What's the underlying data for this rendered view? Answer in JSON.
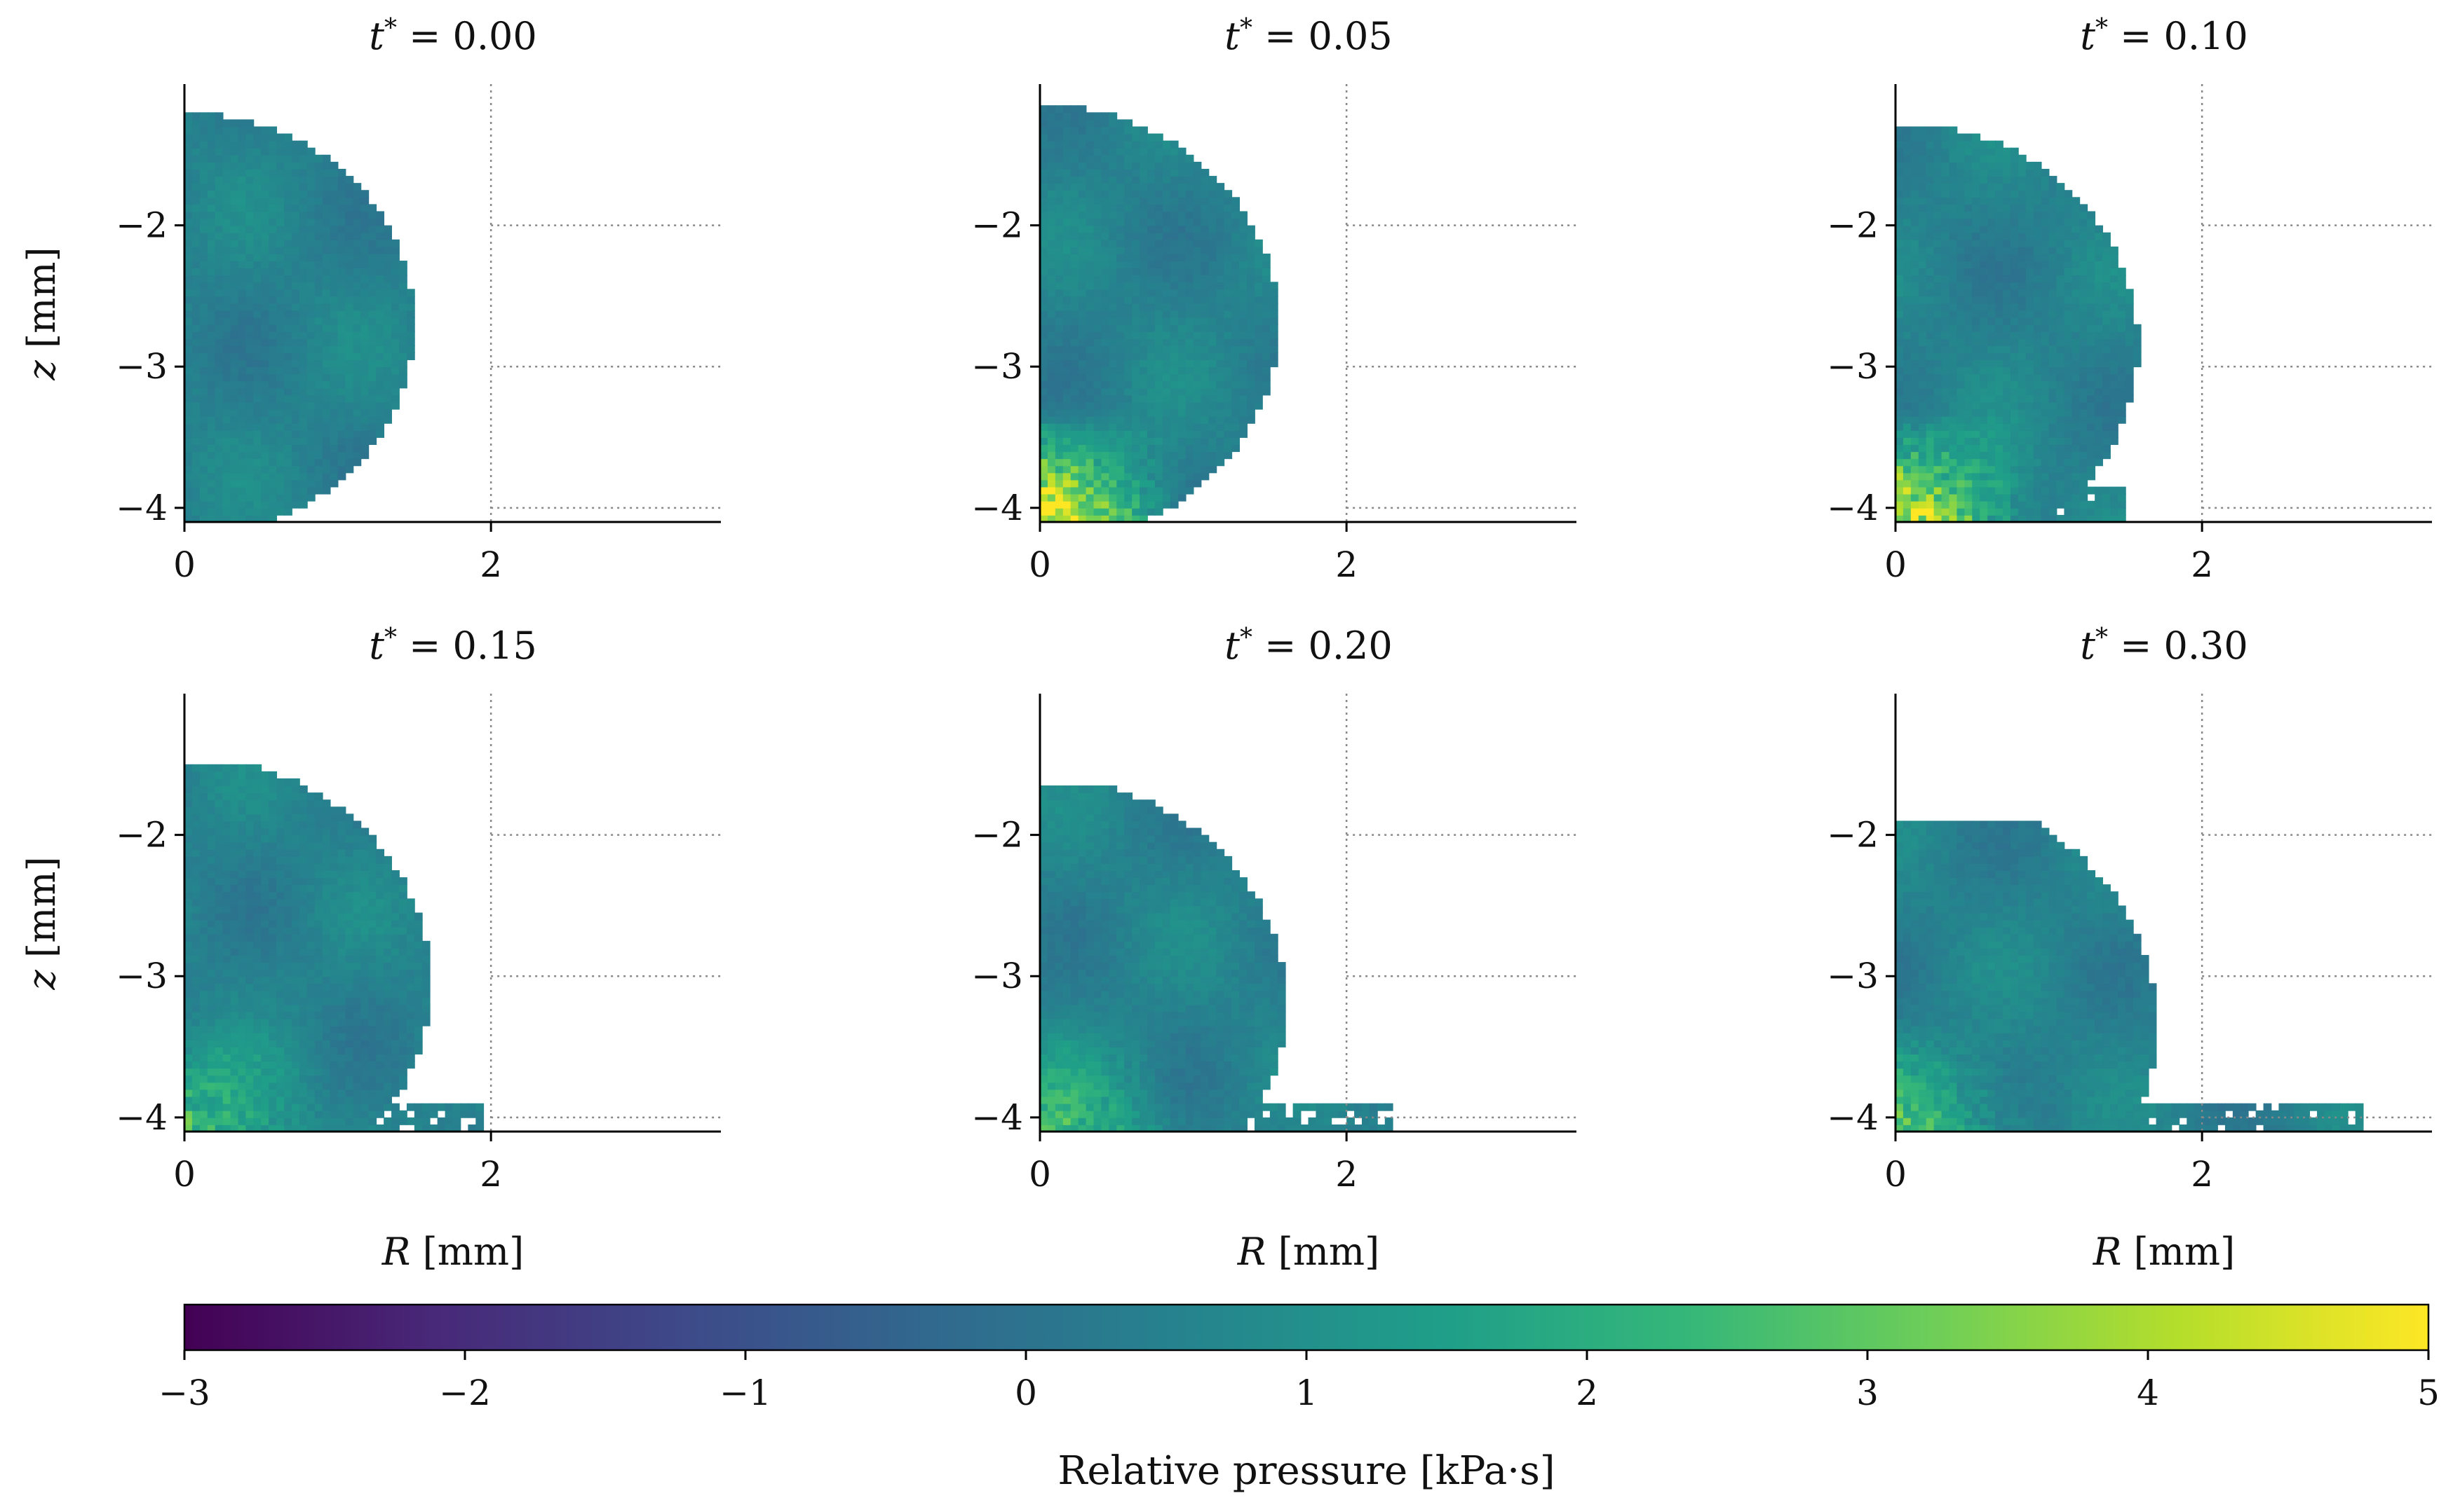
{
  "chart_data": {
    "type": "heatmap",
    "layout": "2x3 grid of panels sharing one horizontal colorbar",
    "colormap": "viridis",
    "panels": [
      {
        "title": "t* = 0.00",
        "t_star": "0.00",
        "title_var": "t",
        "title_value": "= 0.00",
        "droplet_radius_mm": 1.5,
        "center_z_mm": -2.7,
        "clip_top_mm": -1.0,
        "splash": [],
        "xlabel": "",
        "ylabel": "z [mm]",
        "xlim": [
          0,
          3.5
        ],
        "ylim": [
          -4.1,
          -1.0
        ],
        "xticks": [
          0,
          2
        ],
        "yticks": [
          -4,
          -3,
          -2
        ]
      },
      {
        "title": "t* = 0.05",
        "t_star": "0.05",
        "title_var": "t",
        "title_value": "= 0.05",
        "droplet_radius_mm": 1.55,
        "center_z_mm": -2.7,
        "clip_top_mm": -1.1,
        "splash": [],
        "xlabel": "",
        "ylabel": "",
        "xlim": [
          0,
          3.5
        ],
        "ylim": [
          -4.1,
          -1.0
        ],
        "xticks": [
          0,
          2
        ],
        "yticks": [
          -4,
          -3,
          -2
        ]
      },
      {
        "title": "t* = 0.10",
        "t_star": "0.10",
        "title_var": "t",
        "title_value": "= 0.10",
        "droplet_radius_mm": 1.58,
        "center_z_mm": -2.85,
        "clip_top_mm": -1.3,
        "splash": [
          {
            "r0": 1.0,
            "r1": 1.52,
            "z0": -4.1,
            "z1": -3.85
          }
        ],
        "xlabel": "",
        "ylabel": "",
        "xlim": [
          0,
          3.5
        ],
        "ylim": [
          -4.1,
          -1.0
        ],
        "xticks": [
          0,
          2
        ],
        "yticks": [
          -4,
          -3,
          -2
        ]
      },
      {
        "title": "t* = 0.15",
        "t_star": "0.15",
        "title_var": "t",
        "title_value": "= 0.15",
        "droplet_radius_mm": 1.6,
        "center_z_mm": -3.05,
        "clip_top_mm": -1.5,
        "splash": [
          {
            "r0": 1.0,
            "r1": 1.95,
            "z0": -4.1,
            "z1": -3.9
          }
        ],
        "xlabel": "R [mm]",
        "ylabel": "z [mm]",
        "xlim": [
          0,
          3.5
        ],
        "ylim": [
          -4.1,
          -1.0
        ],
        "xticks": [
          0,
          2
        ],
        "yticks": [
          -4,
          -3,
          -2
        ]
      },
      {
        "title": "t* = 0.20",
        "t_star": "0.20",
        "title_var": "t",
        "title_value": "= 0.20",
        "droplet_radius_mm": 1.6,
        "center_z_mm": -3.2,
        "clip_top_mm": -1.65,
        "splash": [
          {
            "r0": 1.4,
            "r1": 2.3,
            "z0": -4.1,
            "z1": -3.9
          }
        ],
        "xlabel": "R [mm]",
        "ylabel": "",
        "xlim": [
          0,
          3.5
        ],
        "ylim": [
          -4.1,
          -1.0
        ],
        "xticks": [
          0,
          2
        ],
        "yticks": [
          -4,
          -3,
          -2
        ]
      },
      {
        "title": "t* = 0.30",
        "t_star": "0.30",
        "title_var": "t",
        "title_value": "= 0.30",
        "droplet_radius_mm": 1.7,
        "center_z_mm": -3.35,
        "clip_top_mm": -1.9,
        "splash": [
          {
            "r0": 1.5,
            "r1": 3.05,
            "z0": -4.1,
            "z1": -3.92
          }
        ],
        "xlabel": "R [mm]",
        "ylabel": "",
        "xlim": [
          0,
          3.5
        ],
        "ylim": [
          -4.1,
          -1.0
        ],
        "xticks": [
          0,
          2
        ],
        "yticks": [
          -4,
          -3,
          -2
        ]
      }
    ],
    "reference_lines": {
      "r_mm": [
        2
      ],
      "z_mm": [
        -4,
        -3,
        -2
      ],
      "style": "dotted grey"
    },
    "colorbar": {
      "label": "Relative pressure [kPa·s]",
      "min": -3,
      "max": 5,
      "ticks": [
        -3,
        -2,
        -1,
        0,
        1,
        2,
        3,
        4,
        5
      ],
      "tick_labels": [
        "−3",
        "−2",
        "−1",
        "0",
        "1",
        "2",
        "3",
        "4",
        "5"
      ],
      "orientation": "horizontal"
    }
  },
  "colors": {
    "viridis_stops": [
      "#440154",
      "#482878",
      "#3e4989",
      "#31688e",
      "#26828e",
      "#1f9e89",
      "#35b779",
      "#6ece58",
      "#b5de2b",
      "#fde725"
    ],
    "axis": "#000000",
    "gridline": "#888888"
  }
}
